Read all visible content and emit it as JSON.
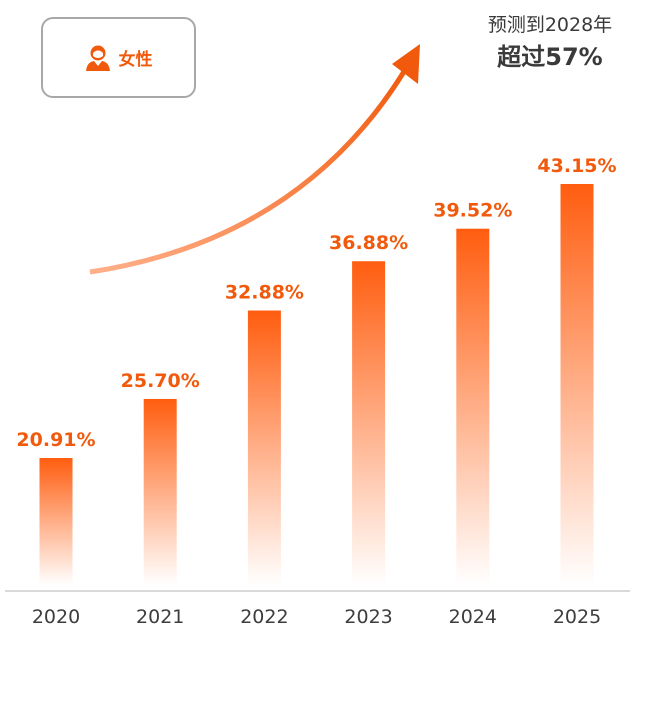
{
  "badge": {
    "label": "女性",
    "icon": "female-user-icon"
  },
  "note": {
    "line1": "预测到2028年",
    "line2": "超过57%"
  },
  "colors": {
    "accent": "#f15a0c",
    "bar_top": "#ff5d0f",
    "bar_bottom": "#ffffff",
    "axis": "#d9d9d9",
    "label": "#3d3d3d"
  },
  "chart_data": {
    "type": "bar",
    "categories": [
      "2020",
      "2021",
      "2022",
      "2023",
      "2024",
      "2025"
    ],
    "values": [
      20.91,
      25.7,
      32.88,
      36.88,
      39.52,
      43.15
    ],
    "value_labels": [
      "20.91%",
      "25.70%",
      "32.88%",
      "36.88%",
      "39.52%",
      "43.15%"
    ],
    "title": "",
    "xlabel": "",
    "ylabel": "",
    "grid": false
  }
}
